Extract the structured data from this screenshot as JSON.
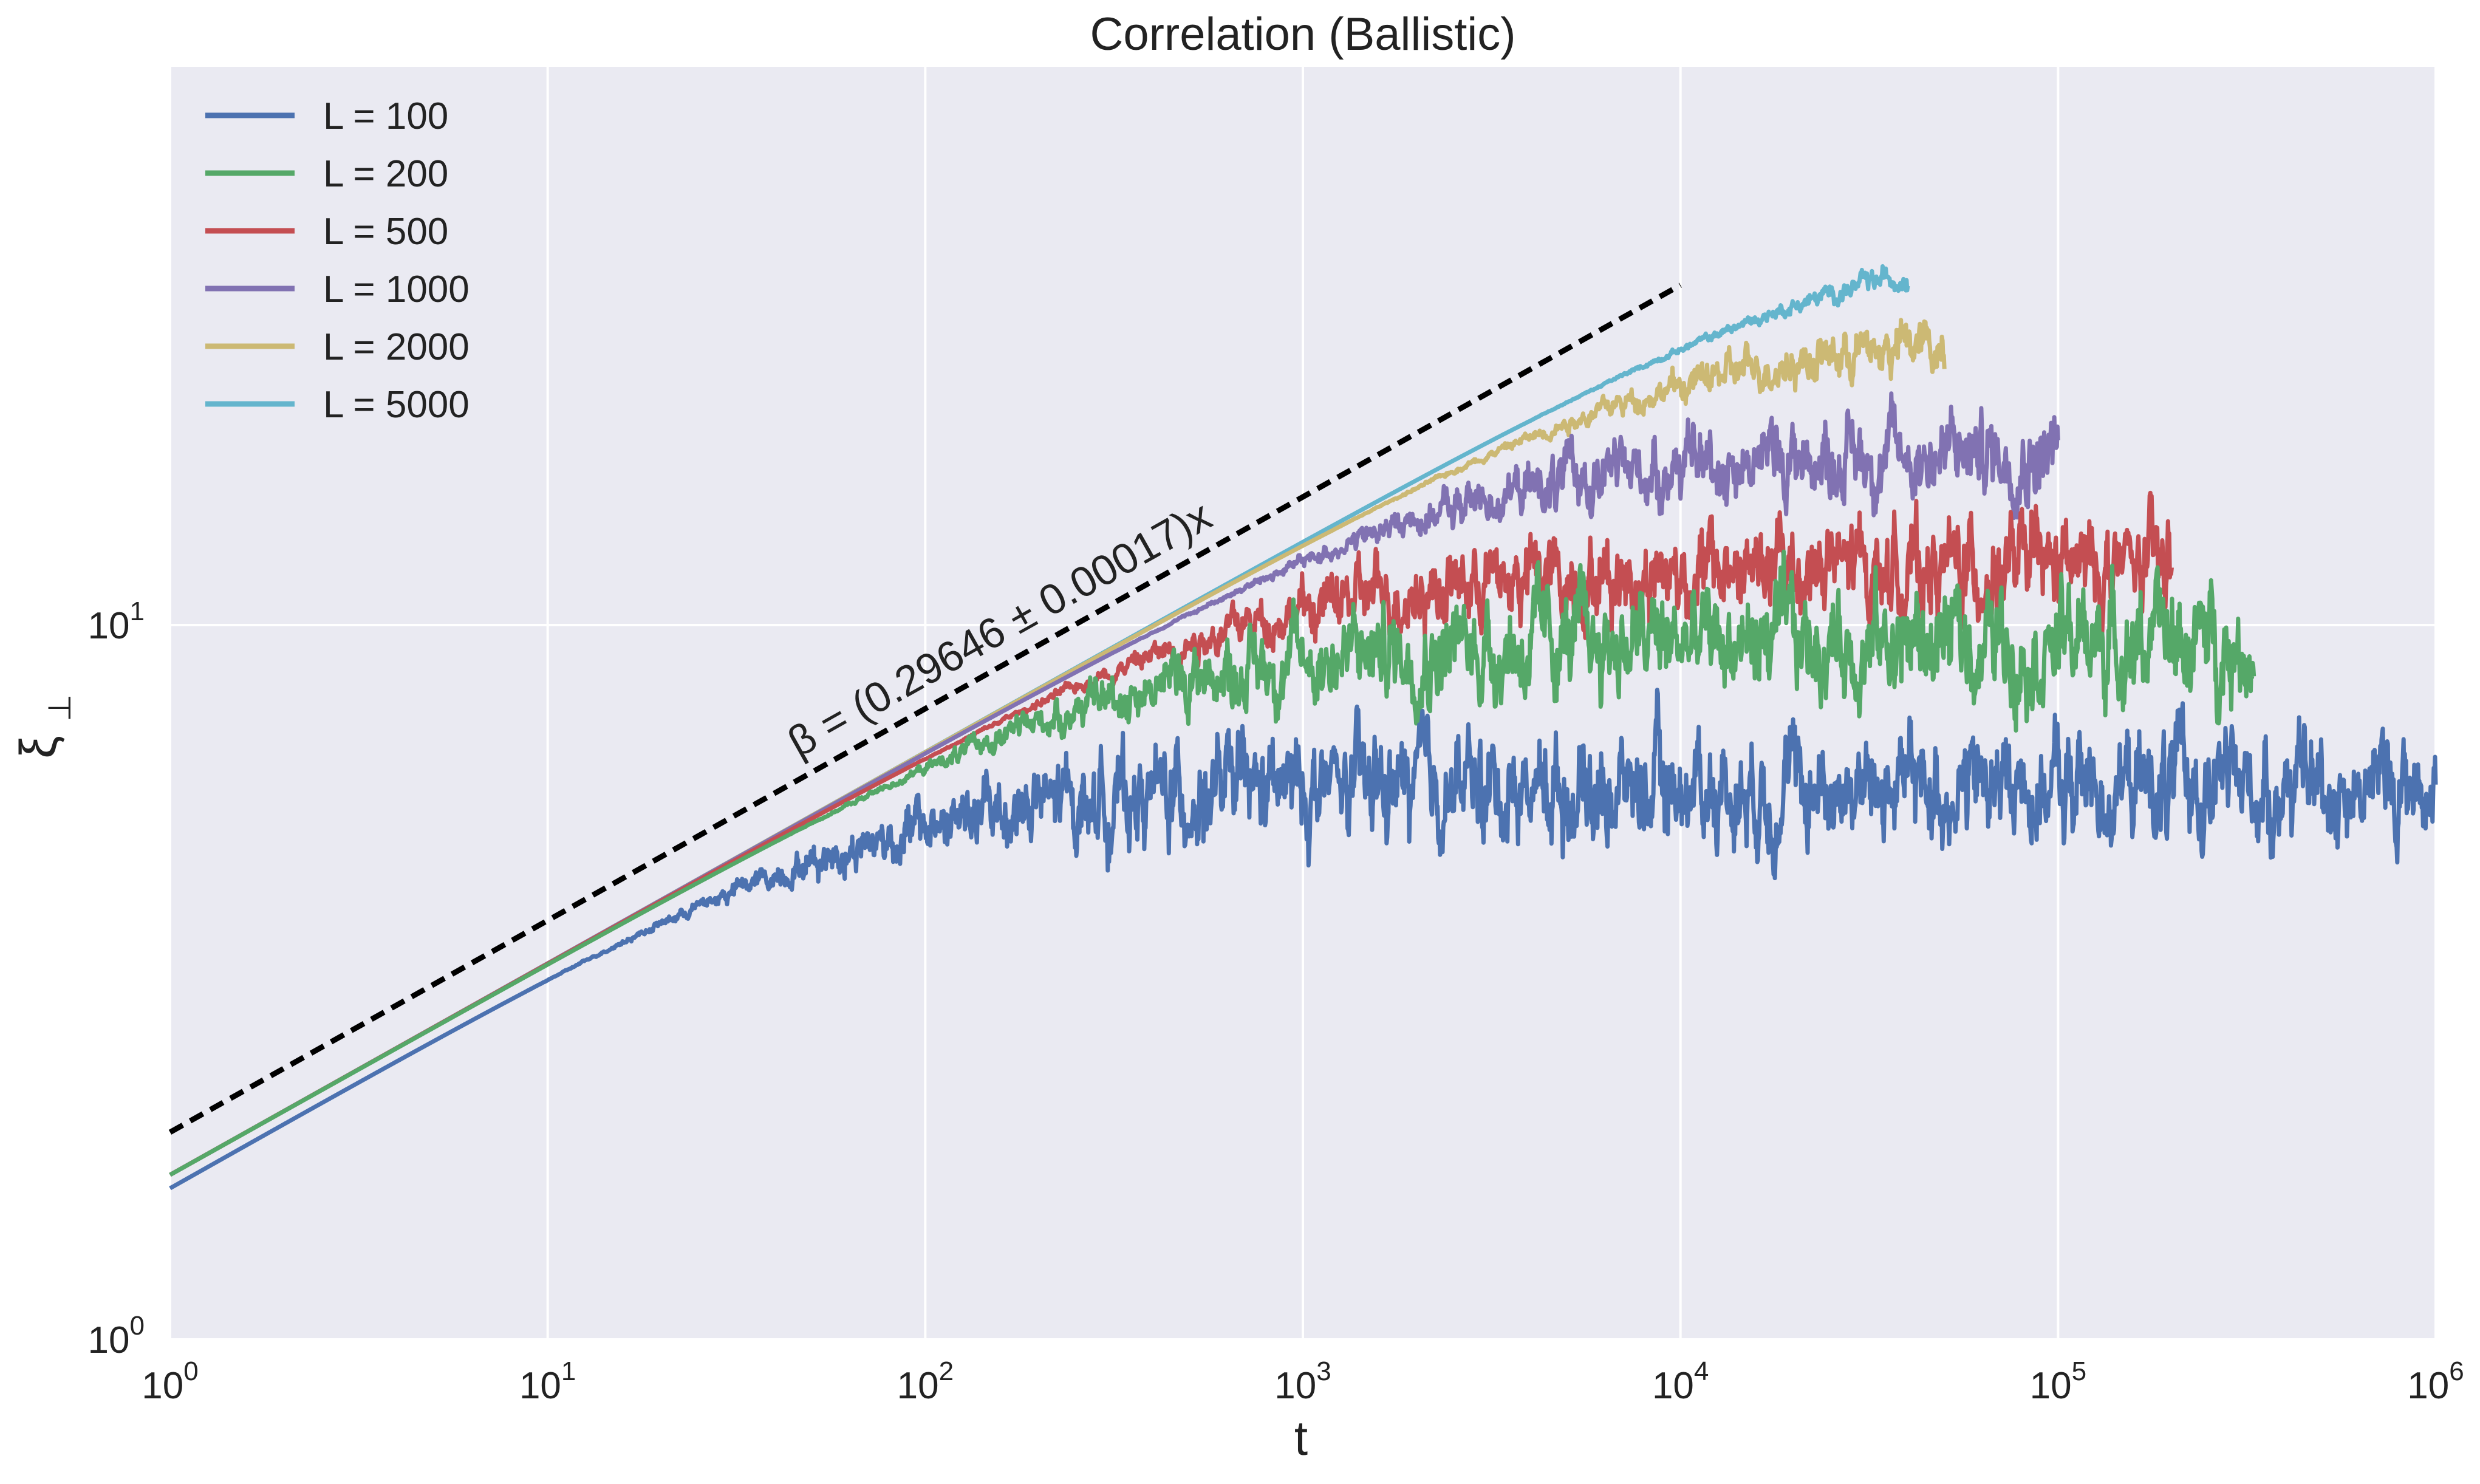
{
  "chart_data": {
    "type": "line",
    "title": "Correlation (Ballistic)",
    "xlabel": "t",
    "ylabel": "ξ",
    "ylabel_sub": "⊥",
    "xscale": "log",
    "yscale": "log",
    "xlim": [
      1,
      1000000
    ],
    "ylim": [
      1,
      100
    ],
    "x_tick_exponents": [
      0,
      1,
      2,
      3,
      4,
      5,
      6
    ],
    "y_tick_exponents": [
      0,
      1
    ],
    "tick_base": "10",
    "grid": true,
    "legend_position": "top-left",
    "background": "#eaeaf2",
    "grid_color": "#ffffff",
    "fit_line": {
      "label": "β = (0.29646 ± 0.00017)x",
      "beta": 0.29646,
      "x": [
        1,
        10000
      ],
      "y_at_1": 1.95,
      "color": "#000000",
      "style": "dashed"
    },
    "series": [
      {
        "name": "L = 100",
        "color": "#4c72b0",
        "x_end": 1000000,
        "saturation": 5.95,
        "noise": 0.05,
        "prefactor": 1.63,
        "beta": 0.3
      },
      {
        "name": "L = 200",
        "color": "#55a868",
        "x_end": 330000,
        "saturation": 9.5,
        "noise": 0.05,
        "prefactor": 1.7,
        "beta": 0.296
      },
      {
        "name": "L = 500",
        "color": "#c44e52",
        "x_end": 200000,
        "saturation": 12.0,
        "noise": 0.045,
        "prefactor": 1.7,
        "beta": 0.296
      },
      {
        "name": "L = 1000",
        "color": "#8172b2",
        "x_end": 100000,
        "saturation": 17.5,
        "noise": 0.04,
        "prefactor": 1.7,
        "beta": 0.296
      },
      {
        "name": "L = 2000",
        "color": "#ccb974",
        "x_end": 50000,
        "saturation": 25.5,
        "noise": 0.03,
        "prefactor": 1.7,
        "beta": 0.296
      },
      {
        "name": "L = 5000",
        "color": "#64b5cd",
        "x_end": 40000,
        "saturation": 35.0,
        "noise": 0.02,
        "prefactor": 1.7,
        "beta": 0.296
      }
    ]
  }
}
